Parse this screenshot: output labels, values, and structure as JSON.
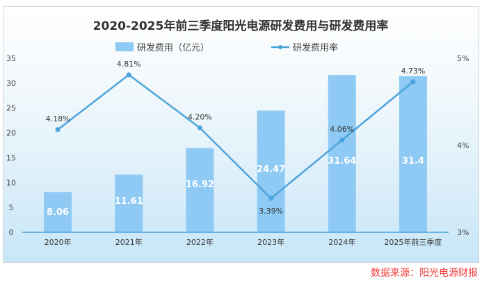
{
  "chart_data": {
    "type": "bar+line",
    "title": "2020-2025年前三季度阳光电源研发费用与研发费用率",
    "categories": [
      "2020年",
      "2021年",
      "2022年",
      "2023年",
      "2024年",
      "2025年前三季度"
    ],
    "series": [
      {
        "name": "研发费用（亿元）",
        "type": "bar",
        "axis": "left",
        "values": [
          8.06,
          11.61,
          16.92,
          24.47,
          31.64,
          31.4
        ],
        "labels": [
          "8.06",
          "11.61",
          "16.92",
          "24.47",
          "31.64",
          "31.4"
        ],
        "color": "#8ecaf3"
      },
      {
        "name": "研发费用率",
        "type": "line",
        "axis": "right",
        "values": [
          4.18,
          4.81,
          4.2,
          3.39,
          4.06,
          4.73
        ],
        "labels": [
          "4.18%",
          "4.81%",
          "4.20%",
          "3.39%",
          "4.06%",
          "4.73%"
        ],
        "color": "#4ba3dc"
      }
    ],
    "left_axis": {
      "ylim": [
        0,
        35
      ],
      "ticks": [
        "0",
        "5",
        "10",
        "15",
        "20",
        "25",
        "30",
        "35"
      ]
    },
    "right_axis": {
      "ylim": [
        3,
        5
      ],
      "ticks": [
        "3%",
        "4%",
        "5%"
      ]
    },
    "legend": "top-center",
    "grid": false
  },
  "source": "数据来源：阳光电源财报"
}
